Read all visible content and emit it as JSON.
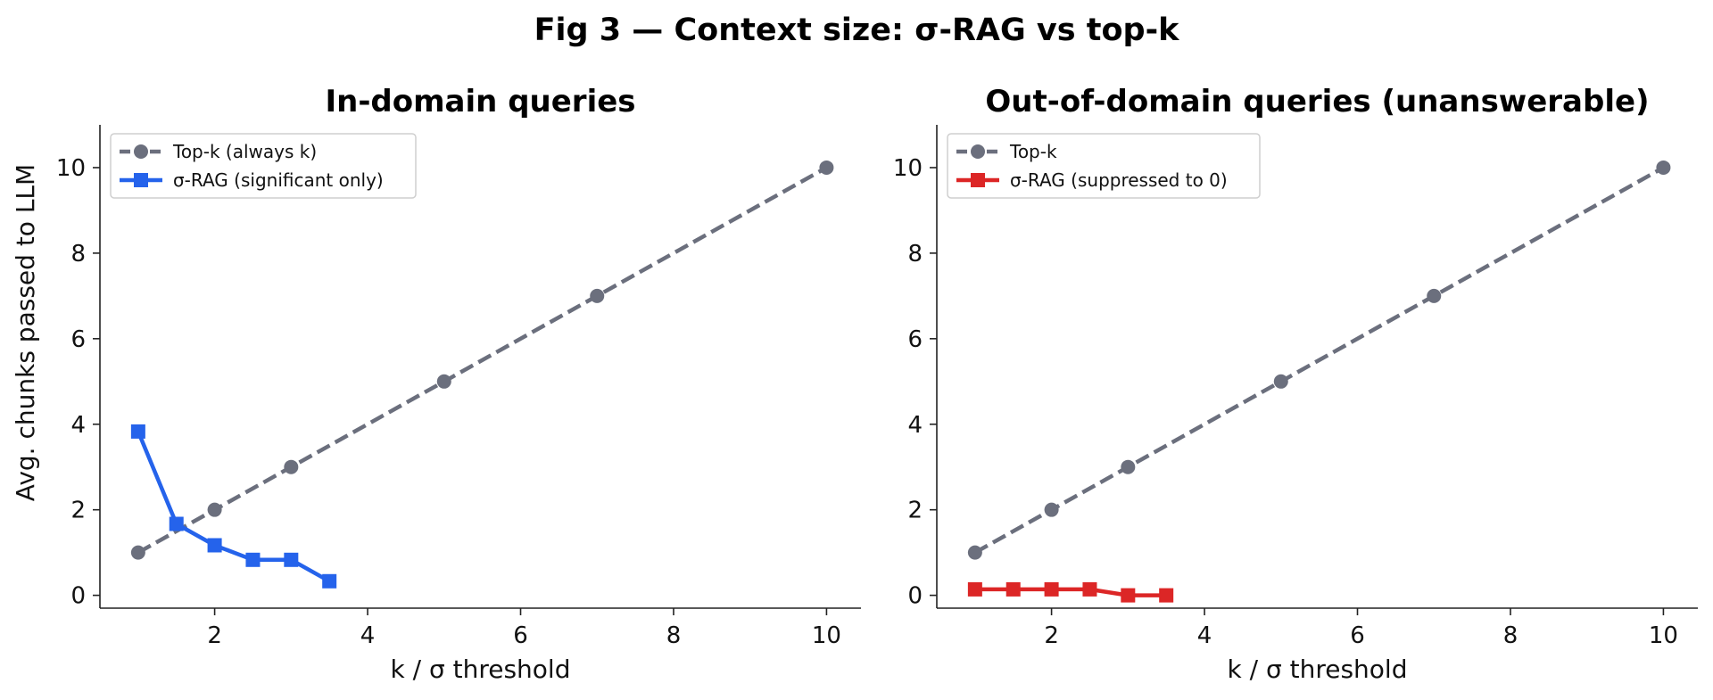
{
  "figure_title": "Fig 3 — Context size: σ-RAG vs top-k",
  "colors": {
    "topk": "#6b6f7d",
    "sigma_in": "#2563eb",
    "sigma_out": "#dc2626"
  },
  "chart_data": [
    {
      "type": "line",
      "title": "In-domain queries",
      "xlabel": "k  /  σ threshold",
      "ylabel": "Avg. chunks passed to LLM",
      "xlim": [
        0.5,
        10.45
      ],
      "ylim": [
        -0.3,
        11.0
      ],
      "xticks": [
        2,
        4,
        6,
        8,
        10
      ],
      "yticks": [
        0,
        2,
        4,
        6,
        8,
        10
      ],
      "grid": false,
      "legend_position": "top-left",
      "series": [
        {
          "name": "Top-k (always k)",
          "marker": "circle",
          "linestyle": "dashed",
          "color_key": "topk",
          "x": [
            1,
            2,
            3,
            5,
            7,
            10
          ],
          "y": [
            1,
            2,
            3,
            5,
            7,
            10
          ]
        },
        {
          "name": "σ-RAG (significant only)",
          "marker": "square",
          "linestyle": "solid",
          "color_key": "sigma_in",
          "x": [
            1,
            1.5,
            2,
            2.5,
            3,
            3.5
          ],
          "y": [
            3.83,
            1.67,
            1.17,
            0.83,
            0.83,
            0.33
          ]
        }
      ]
    },
    {
      "type": "line",
      "title": "Out-of-domain queries (unanswerable)",
      "xlabel": "k  /  σ threshold",
      "ylabel": "",
      "xlim": [
        0.5,
        10.45
      ],
      "ylim": [
        -0.3,
        11.0
      ],
      "xticks": [
        2,
        4,
        6,
        8,
        10
      ],
      "yticks": [
        0,
        2,
        4,
        6,
        8,
        10
      ],
      "grid": false,
      "legend_position": "top-left",
      "series": [
        {
          "name": "Top-k",
          "marker": "circle",
          "linestyle": "dashed",
          "color_key": "topk",
          "x": [
            1,
            2,
            3,
            5,
            7,
            10
          ],
          "y": [
            1,
            2,
            3,
            5,
            7,
            10
          ]
        },
        {
          "name": "σ-RAG (suppressed to 0)",
          "marker": "square",
          "linestyle": "solid",
          "color_key": "sigma_out",
          "x": [
            1,
            1.5,
            2,
            2.5,
            3,
            3.5
          ],
          "y": [
            0.14,
            0.14,
            0.14,
            0.14,
            0.0,
            0.0
          ]
        }
      ]
    }
  ]
}
